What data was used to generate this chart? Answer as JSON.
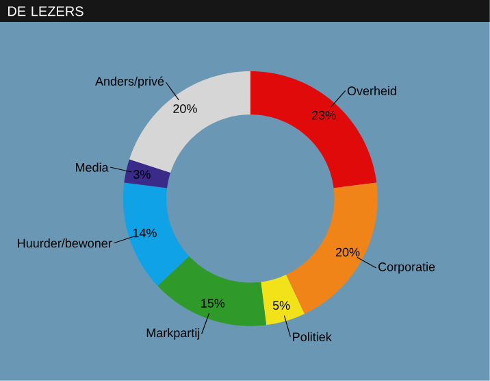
{
  "chart_data": {
    "type": "donut",
    "title": "DE LEZERS",
    "categories": [
      "Overheid",
      "Corporatie",
      "Politiek",
      "Markpartij",
      "Huurder/bewoner",
      "Media",
      "Anders/privé"
    ],
    "values": [
      23,
      20,
      5,
      15,
      14,
      3,
      20
    ],
    "value_labels": [
      "23%",
      "20%",
      "5%",
      "15%",
      "14%",
      "3%",
      "20%"
    ],
    "colors": [
      "#e00a0a",
      "#f08418",
      "#f2e21a",
      "#2f9a2a",
      "#10a2e6",
      "#3a2a8a",
      "#d6d6d6"
    ]
  }
}
